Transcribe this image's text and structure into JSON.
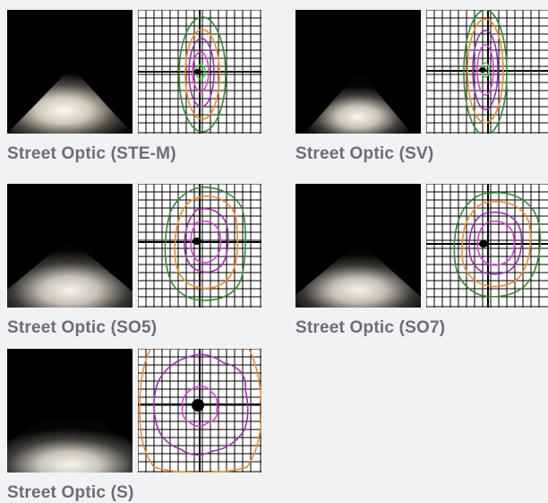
{
  "optics": [
    {
      "caption": "Street Optic (STE-M)"
    },
    {
      "caption": "Street Optic (SV)"
    },
    {
      "caption": "Street Optic (SO5)"
    },
    {
      "caption": "Street Optic (SO7)"
    },
    {
      "caption": "Street Optic (S)"
    }
  ],
  "colors": {
    "background": "#f1f2f4",
    "caption": "#6b6e76",
    "contour_outer": "#2f8a2f",
    "contour_mid": "#f08a24",
    "contour_inner": "#9b2fb0",
    "contour_core": "#e03ae0",
    "contour_center": "#49d649"
  }
}
